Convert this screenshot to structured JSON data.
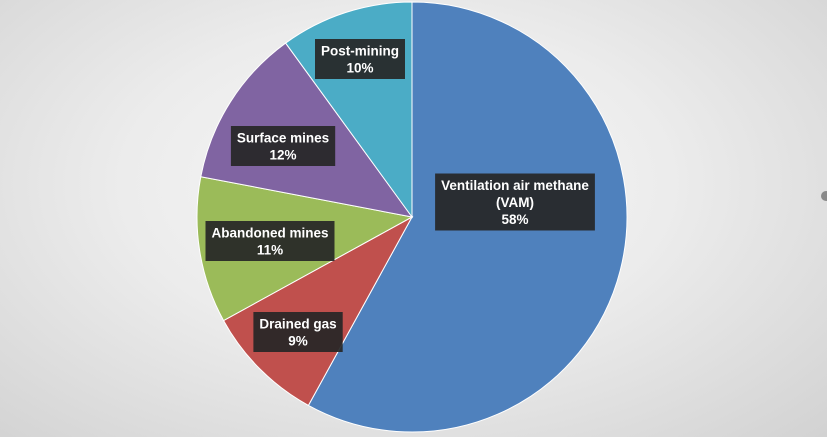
{
  "chart_data": {
    "type": "pie",
    "title": "",
    "start_angle_deg": 0,
    "direction": "clockwise",
    "slices": [
      {
        "label": [
          "Ventilation air methane",
          "(VAM)"
        ],
        "pct_label": "58%",
        "value": 58,
        "color": "#4f81bd"
      },
      {
        "label": [
          "Drained gas"
        ],
        "pct_label": "9%",
        "value": 9,
        "color": "#c0504d"
      },
      {
        "label": [
          "Abandoned mines"
        ],
        "pct_label": "11%",
        "value": 11,
        "color": "#9bbb59"
      },
      {
        "label": [
          "Surface mines"
        ],
        "pct_label": "12%",
        "value": 12,
        "color": "#8064a2"
      },
      {
        "label": [
          "Post-mining"
        ],
        "pct_label": "10%",
        "value": 10,
        "color": "#4bacc6"
      }
    ]
  }
}
